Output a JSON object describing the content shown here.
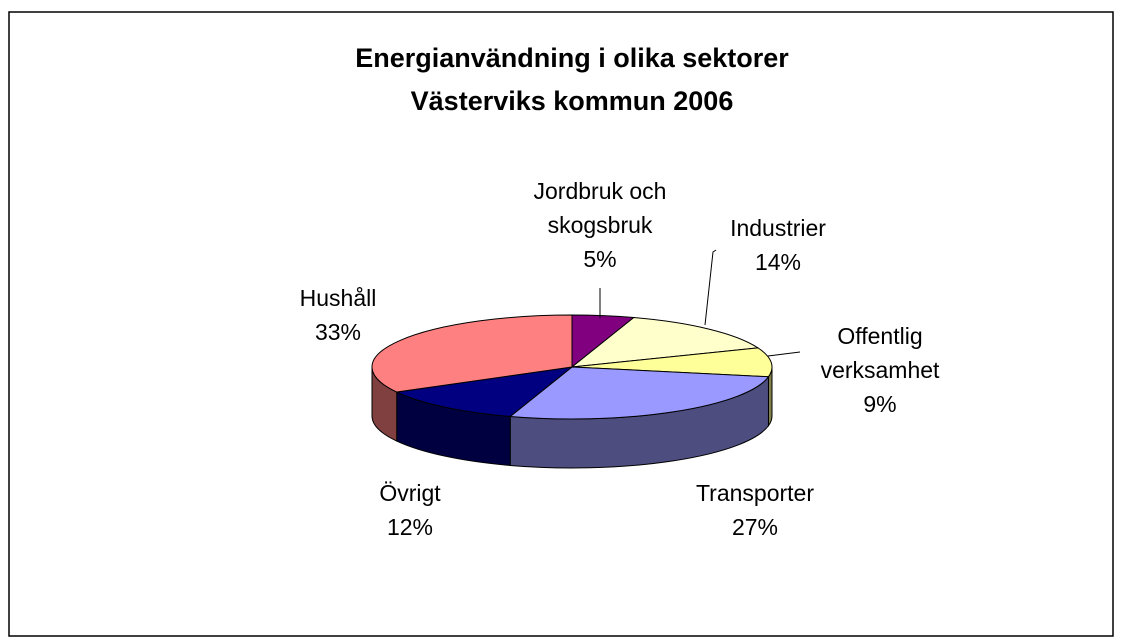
{
  "chart_data": {
    "type": "pie",
    "title": "Energianvändning i olika sektorer",
    "subtitle": "Västerviks kommun 2006",
    "categories": [
      "Jordbruk och skogsbruk",
      "Industrier",
      "Offentlig verksamhet",
      "Transporter",
      "Övrigt",
      "Hushåll"
    ],
    "values": [
      5,
      14,
      9,
      27,
      12,
      33
    ],
    "value_labels": [
      "5%",
      "14%",
      "9%",
      "27%",
      "12%",
      "33%"
    ],
    "colors": [
      "#800080",
      "#FFFFCC",
      "#FFFF99",
      "#9999FF",
      "#000080",
      "#FF8080"
    ]
  }
}
